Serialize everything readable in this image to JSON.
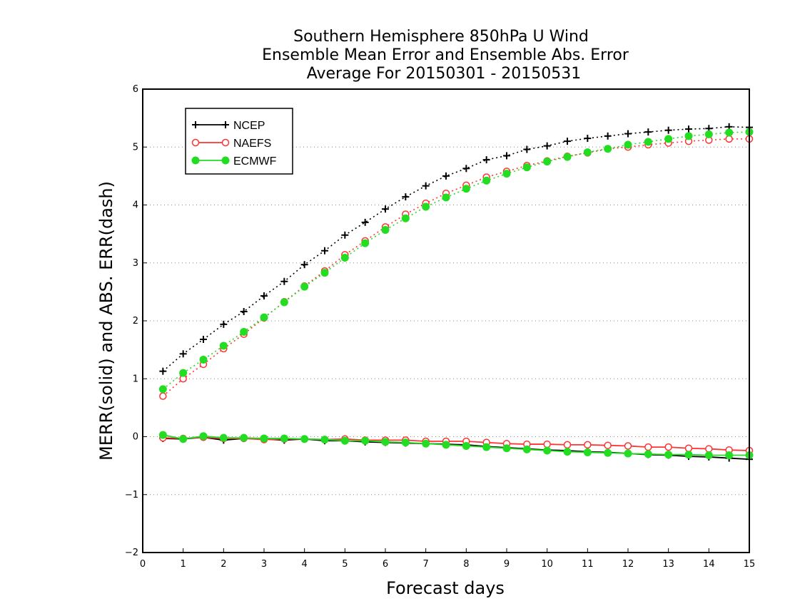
{
  "chart_data": {
    "type": "line",
    "title": [
      "Southern Hemisphere 850hPa U Wind",
      "Ensemble Mean Error and Ensemble Abs. Error",
      "Average For 20150301 - 20150531"
    ],
    "xlabel": "Forecast days",
    "ylabel": "MERR(solid) and ABS. ERR(dash)",
    "xlim": [
      0,
      15
    ],
    "ylim": [
      -2,
      6
    ],
    "xticks": [
      0,
      1,
      2,
      3,
      4,
      5,
      6,
      7,
      8,
      9,
      10,
      11,
      12,
      13,
      14,
      15
    ],
    "yticks": [
      -2,
      -1,
      0,
      1,
      2,
      3,
      4,
      5,
      6
    ],
    "ytick_labels": [
      "−2",
      "−1",
      "0",
      "1",
      "2",
      "3",
      "4",
      "5",
      "6"
    ],
    "grid": "horizontal dotted",
    "legend_position": "top-left",
    "x": [
      0.5,
      1.0,
      1.5,
      2.0,
      2.5,
      3.0,
      3.5,
      4.0,
      4.5,
      5.0,
      5.5,
      6.0,
      6.5,
      7.0,
      7.5,
      8.0,
      8.5,
      9.0,
      9.5,
      10.0,
      10.5,
      11.0,
      11.5,
      12.0,
      12.5,
      13.0,
      13.5,
      14.0,
      14.5,
      15.0
    ],
    "series": [
      {
        "name": "NCEP",
        "color": "#000000",
        "marker": "plus",
        "merr": [
          -0.03,
          -0.04,
          -0.01,
          -0.06,
          -0.03,
          -0.04,
          -0.06,
          -0.04,
          -0.07,
          -0.07,
          -0.09,
          -0.1,
          -0.11,
          -0.12,
          -0.13,
          -0.14,
          -0.17,
          -0.19,
          -0.21,
          -0.23,
          -0.24,
          -0.26,
          -0.27,
          -0.29,
          -0.31,
          -0.32,
          -0.34,
          -0.35,
          -0.37,
          -0.39
        ],
        "abs_err": [
          1.13,
          1.43,
          1.68,
          1.94,
          2.16,
          2.43,
          2.68,
          2.97,
          3.21,
          3.48,
          3.7,
          3.93,
          4.14,
          4.33,
          4.5,
          4.63,
          4.78,
          4.85,
          4.96,
          5.02,
          5.1,
          5.15,
          5.19,
          5.23,
          5.26,
          5.29,
          5.31,
          5.32,
          5.35,
          5.34
        ]
      },
      {
        "name": "NAEFS",
        "color": "#ff3333",
        "marker": "open-circle",
        "merr": [
          -0.02,
          -0.03,
          -0.01,
          -0.03,
          -0.03,
          -0.05,
          -0.04,
          -0.04,
          -0.05,
          -0.04,
          -0.06,
          -0.06,
          -0.06,
          -0.08,
          -0.08,
          -0.08,
          -0.1,
          -0.12,
          -0.13,
          -0.13,
          -0.14,
          -0.14,
          -0.15,
          -0.16,
          -0.18,
          -0.18,
          -0.2,
          -0.21,
          -0.23,
          -0.24
        ],
        "abs_err": [
          0.7,
          1.0,
          1.25,
          1.52,
          1.77,
          2.05,
          2.33,
          2.6,
          2.86,
          3.14,
          3.38,
          3.62,
          3.84,
          4.03,
          4.2,
          4.34,
          4.48,
          4.58,
          4.68,
          4.76,
          4.84,
          4.9,
          4.97,
          5.0,
          5.04,
          5.07,
          5.1,
          5.12,
          5.14,
          5.14
        ]
      },
      {
        "name": "ECMWF",
        "color": "#22dd22",
        "marker": "filled-circle",
        "merr": [
          0.03,
          -0.04,
          0.01,
          -0.02,
          -0.02,
          -0.03,
          -0.03,
          -0.04,
          -0.05,
          -0.07,
          -0.07,
          -0.09,
          -0.1,
          -0.12,
          -0.14,
          -0.16,
          -0.18,
          -0.2,
          -0.22,
          -0.24,
          -0.26,
          -0.27,
          -0.28,
          -0.29,
          -0.3,
          -0.31,
          -0.31,
          -0.32,
          -0.32,
          -0.32
        ],
        "abs_err": [
          0.82,
          1.1,
          1.33,
          1.57,
          1.81,
          2.06,
          2.32,
          2.59,
          2.83,
          3.09,
          3.34,
          3.57,
          3.77,
          3.97,
          4.13,
          4.28,
          4.42,
          4.54,
          4.65,
          4.75,
          4.83,
          4.91,
          4.97,
          5.04,
          5.09,
          5.14,
          5.19,
          5.22,
          5.25,
          5.26
        ]
      }
    ]
  }
}
